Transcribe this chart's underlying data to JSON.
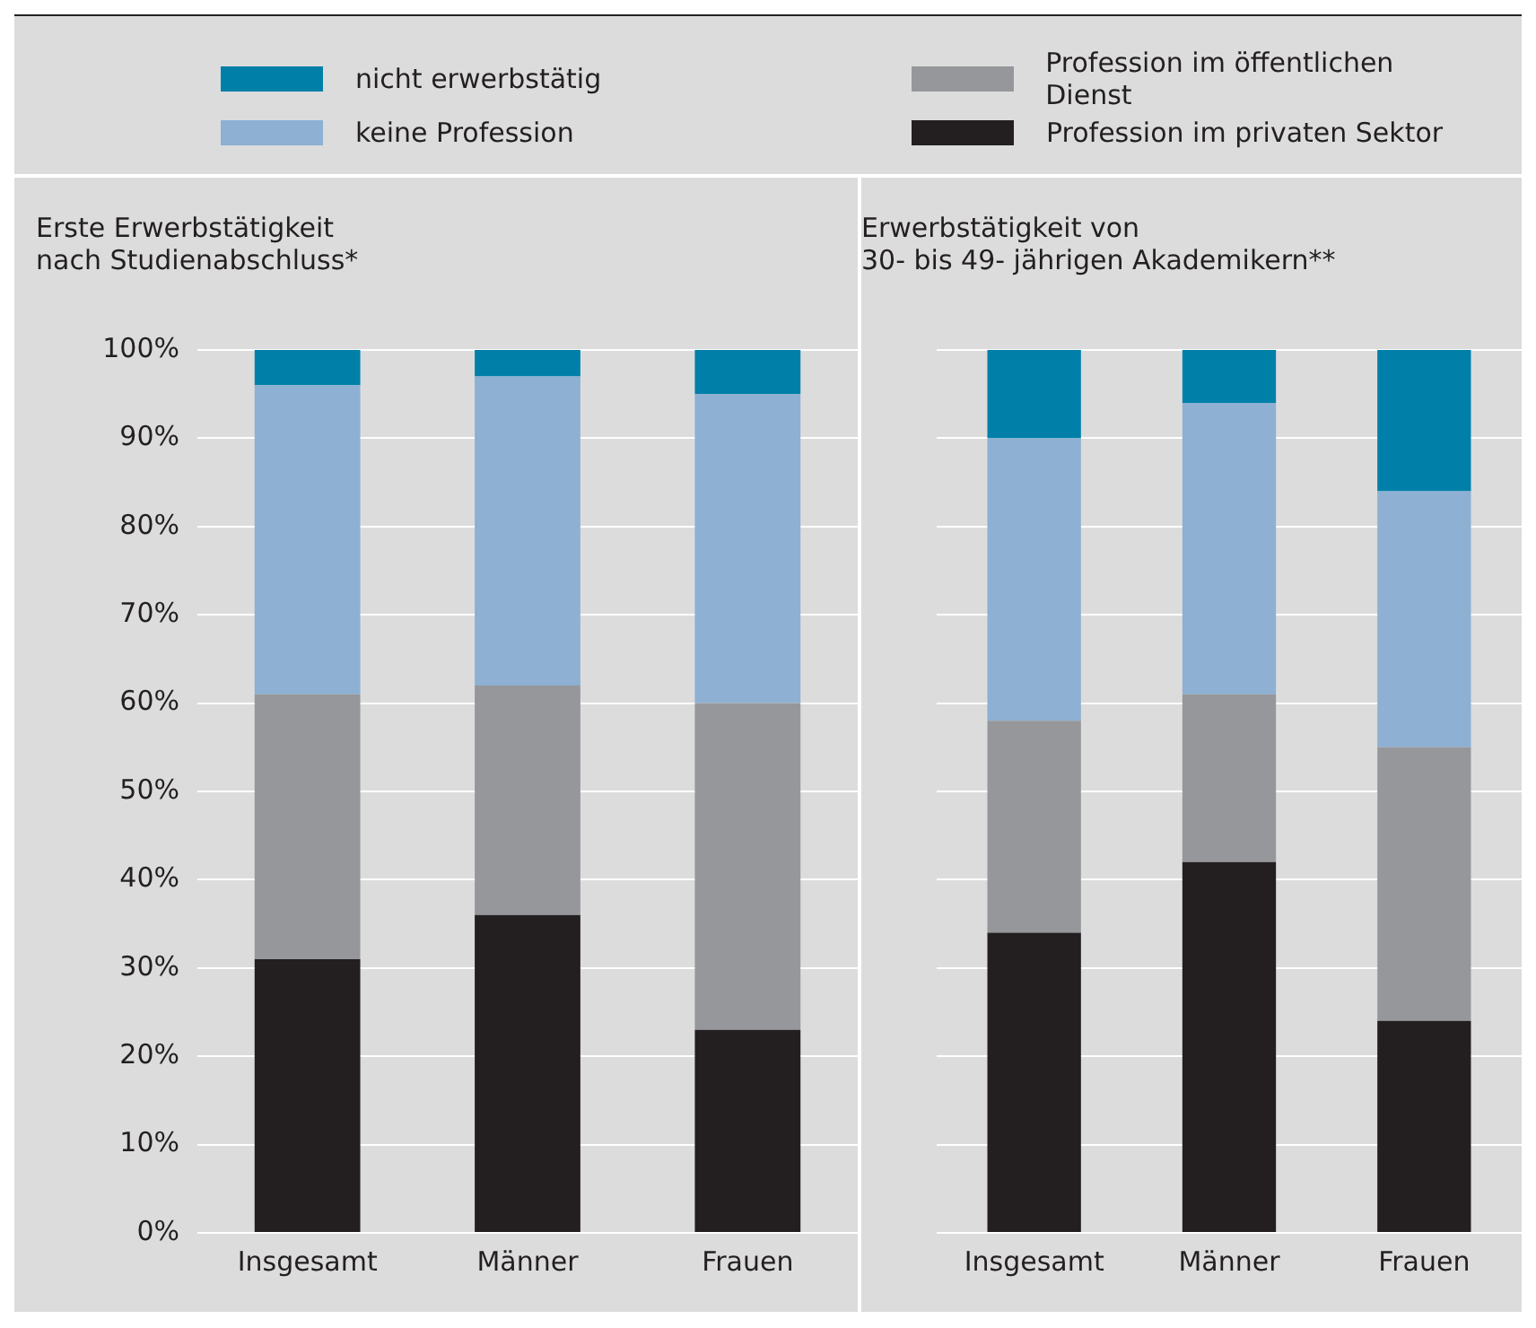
{
  "chart_data": [
    {
      "type": "bar",
      "stacked": true,
      "title": "Erste Erwerbstätigkeit\nnach Studienabschluss*",
      "categories": [
        "Insgesamt",
        "Männer",
        "Frauen"
      ],
      "ylim": [
        0,
        100
      ],
      "yticks": [
        {
          "value": 0,
          "label": "0%"
        },
        {
          "value": 10,
          "label": "10%"
        },
        {
          "value": 20,
          "label": "20%"
        },
        {
          "value": 30,
          "label": "30%"
        },
        {
          "value": 40,
          "label": "40%"
        },
        {
          "value": 50,
          "label": "50%"
        },
        {
          "value": 60,
          "label": "60%"
        },
        {
          "value": 70,
          "label": "70%"
        },
        {
          "value": 80,
          "label": "80%"
        },
        {
          "value": 90,
          "label": "90%"
        },
        {
          "value": 100,
          "label": "100%"
        }
      ],
      "grid": "y",
      "legend": "top",
      "series": [
        {
          "name": "Profession im privaten Sektor",
          "color": "#231f20",
          "values": [
            31,
            36,
            23
          ]
        },
        {
          "name": "Profession im öffentlichen Dienst",
          "color": "#96979b",
          "values": [
            30,
            26,
            37
          ]
        },
        {
          "name": "keine Profession",
          "color": "#8db0d3",
          "values": [
            35,
            35,
            35
          ]
        },
        {
          "name": "nicht erwerbstätig",
          "color": "#0080a8",
          "values": [
            4,
            3,
            5
          ]
        }
      ]
    },
    {
      "type": "bar",
      "stacked": true,
      "title": "Erwerbstätigkeit von\n30- bis 49- jährigen Akademikern**",
      "categories": [
        "Insgesamt",
        "Männer",
        "Frauen"
      ],
      "ylim": [
        0,
        100
      ],
      "yticks": [
        0,
        10,
        20,
        30,
        40,
        50,
        60,
        70,
        80,
        90,
        100
      ],
      "grid": "y",
      "tick_labels": "x",
      "series": [
        {
          "color": "#231f20",
          "values": [
            34,
            42,
            24
          ]
        },
        {
          "color": "#96979b",
          "values": [
            24,
            19,
            31
          ]
        },
        {
          "color": "#8db0d3",
          "values": [
            32,
            33,
            29
          ]
        },
        {
          "color": "#0080a8",
          "values": [
            10,
            6,
            16
          ]
        }
      ]
    }
  ]
}
